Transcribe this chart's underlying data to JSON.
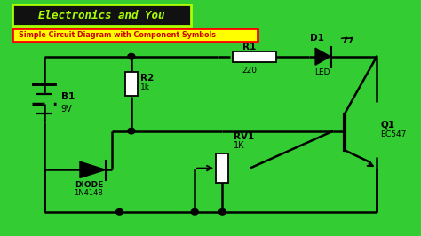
{
  "fig_w": 4.74,
  "fig_h": 2.66,
  "dpi": 100,
  "bg_color": "#33cc33",
  "inner_bg": "#f0f0f0",
  "title_bg": "#1a1a1a",
  "title_fg": "#aaff00",
  "title_text": "Electronics and You",
  "subtitle_bg": "#ffff00",
  "subtitle_fg": "#cc0000",
  "subtitle_border": "#ff0000",
  "subtitle_text": "Simple Circuit Diagram with Component Symbols",
  "wire_color": "#000000",
  "wire_lw": 1.8,
  "labels": {
    "B1": "B1",
    "B1_val": "9V",
    "R1": "R1",
    "R1_val": "220",
    "R2": "R2",
    "R2_val": "1k",
    "RV1": "RV1",
    "RV1_val": "1K",
    "D1": "D1",
    "D1_sub": "LED",
    "DIODE": "DIODE",
    "DIODE_val": "1N4148",
    "Q1": "Q1",
    "Q1_val": "BC547"
  },
  "xl": 0,
  "xr": 10,
  "yb": 0,
  "yt": 7
}
